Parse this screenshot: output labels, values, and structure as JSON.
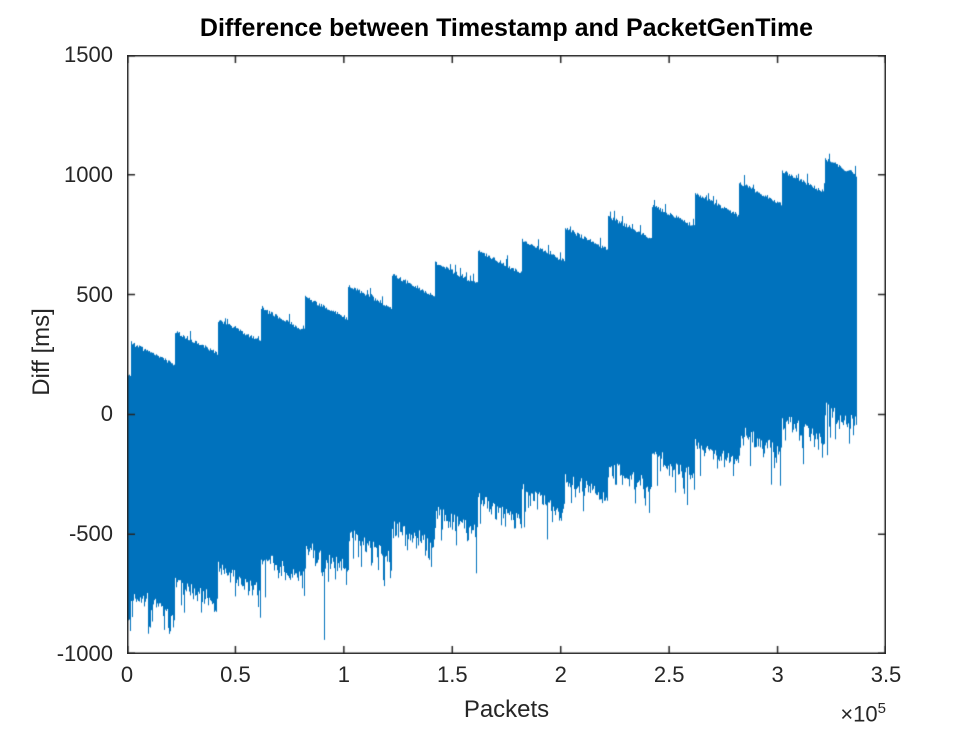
{
  "chart_data": {
    "type": "line",
    "title": "Difference between Timestamp and PacketGenTime",
    "xlabel": "Packets",
    "ylabel": "Diff [ms]",
    "x_multiplier_base": "×10",
    "x_multiplier_exponent": "5",
    "xlim": [
      0,
      350000
    ],
    "ylim": [
      -1000,
      1500
    ],
    "x_tick_values": [
      0,
      50000,
      100000,
      150000,
      200000,
      250000,
      300000,
      350000
    ],
    "x_tick_labels": [
      "0",
      "0.5",
      "1",
      "1.5",
      "2",
      "2.5",
      "3",
      "3.5"
    ],
    "y_tick_values": [
      -1000,
      -500,
      0,
      500,
      1000,
      1500
    ],
    "y_tick_labels": [
      "-1000",
      "-500",
      "0",
      "500",
      "1000",
      "1500"
    ],
    "grid": false,
    "legend": "none",
    "box": true,
    "line_color": "#0072BD",
    "axis_color": "#262626",
    "background_color": "#ffffff",
    "series": [
      {
        "name": "Diff between Timestamp and PacketGenTime",
        "shape": "dense noisy band with rising sawtooth envelope",
        "x_start": 0,
        "x_end": 336500,
        "sawtooth_period_packets": 20000,
        "first_jump_x": 2000,
        "top_envelope_peaks": [
          295,
          343,
          391,
          439,
          487,
          535,
          583,
          631,
          679,
          727,
          775,
          823,
          871,
          919,
          967,
          1015,
          1063
        ],
        "top_envelope_decay_per_period": 92,
        "top_at_x0": 165,
        "band_thickness_ms": 1035,
        "bottom_noise_ms": 65,
        "bottom_spike_probability": 0.35,
        "bottom_spike_max_extra_ms": 150,
        "top_spike_probability": 0.08,
        "top_spike_max_ms": 45,
        "end_region_extra_spike_ms": 60,
        "lowest_point": {
          "x": 91000,
          "y": -941
        },
        "top_at_end": 995,
        "bottom_at_end": -80
      }
    ]
  }
}
